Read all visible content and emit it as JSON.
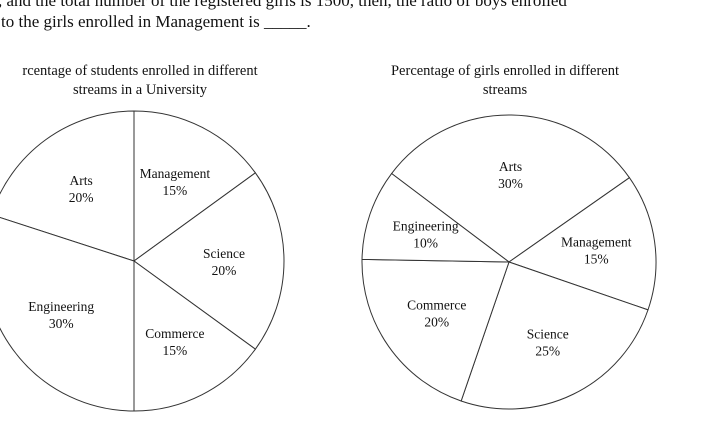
{
  "question": {
    "line1": ", and the total number of the registered girls is 1500, then, the ratio of boys enrolled",
    "line2": "to the girls enrolled in Management is _____."
  },
  "chart_data": [
    {
      "type": "pie",
      "title_line1": "rcentage of students enrolled in different",
      "title_line2": "streams in a University",
      "slices": [
        {
          "name": "Arts",
          "value": 20,
          "label": "20%"
        },
        {
          "name": "Management",
          "value": 15,
          "label": "15%"
        },
        {
          "name": "Science",
          "value": 20,
          "label": "20%"
        },
        {
          "name": "Commerce",
          "value": 15,
          "label": "15%"
        },
        {
          "name": "Engineering",
          "value": 30,
          "label": "30%"
        }
      ]
    },
    {
      "type": "pie",
      "title_line1": "Percentage of girls enrolled in different",
      "title_line2": "streams",
      "slices": [
        {
          "name": "Arts",
          "value": 30,
          "label": "30%"
        },
        {
          "name": "Management",
          "value": 15,
          "label": "15%"
        },
        {
          "name": "Science",
          "value": 25,
          "label": "25%"
        },
        {
          "name": "Commerce",
          "value": 20,
          "label": "20%"
        },
        {
          "name": "Engineering",
          "value": 10,
          "label": "10%"
        }
      ]
    }
  ]
}
